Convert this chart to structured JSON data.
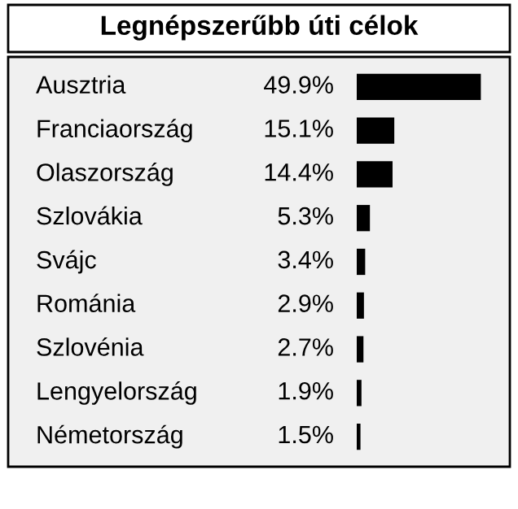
{
  "chart_data": {
    "type": "bar",
    "orientation": "horizontal",
    "title": "Legnépszerűbb úti célok",
    "categories": [
      "Ausztria",
      "Franciaország",
      "Olaszország",
      "Szlovákia",
      "Svájc",
      "Románia",
      "Szlovénia",
      "Lengyelország",
      "Németország"
    ],
    "values": [
      49.9,
      15.1,
      14.4,
      5.3,
      3.4,
      2.9,
      2.7,
      1.9,
      1.5
    ],
    "value_labels": [
      "49.9%",
      "15.1%",
      "14.4%",
      "5.3%",
      "3.4%",
      "2.9%",
      "2.7%",
      "1.9%",
      "1.5%"
    ],
    "color": "#000000"
  }
}
